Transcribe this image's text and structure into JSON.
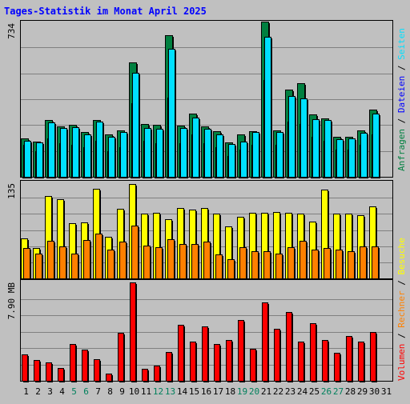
{
  "title": "Tages-Statistik im Monat April 2025",
  "colors": {
    "background": "#c0c0c0",
    "title": "#0000ff",
    "anfragen": "#008040",
    "dateien": "#0000ff",
    "seiten": "#00e0ff",
    "besuche": "#ffff00",
    "rechner": "#ff8000",
    "volumen": "#ff0000",
    "weekend_label": "#00805c"
  },
  "legend": {
    "top": [
      {
        "text": "Anfragen",
        "color": "#008040"
      },
      {
        "text": "Dateien",
        "color": "#0000ff"
      },
      {
        "text": "Seiten",
        "color": "#00e0ff"
      }
    ],
    "bottom": [
      {
        "text": "Volumen",
        "color": "#ff0000"
      },
      {
        "text": "Rechner",
        "color": "#ff8000"
      },
      {
        "text": "Besuche",
        "color": "#ffff00"
      }
    ],
    "separator": "/"
  },
  "chart_data": [
    {
      "type": "bar",
      "name": "panel-hits",
      "axis_label": "734",
      "ylim": [
        0,
        734
      ],
      "categories": [
        "1",
        "2",
        "3",
        "4",
        "5",
        "6",
        "7",
        "8",
        "9",
        "10",
        "11",
        "12",
        "13",
        "14",
        "15",
        "16",
        "17",
        "18",
        "19",
        "20",
        "21",
        "22",
        "23",
        "24",
        "25",
        "26",
        "27",
        "28",
        "29",
        "30",
        "31"
      ],
      "weekend_days": [
        "5",
        "6",
        "12",
        "13",
        "19",
        "20",
        "26",
        "27"
      ],
      "series": [
        {
          "name": "Anfragen",
          "values": [
            182,
            168,
            267,
            239,
            246,
            210,
            269,
            200,
            220,
            542,
            251,
            247,
            668,
            241,
            298,
            237,
            217,
            162,
            200,
            216,
            734,
            218,
            411,
            443,
            294,
            276,
            188,
            188,
            220,
            317,
            0
          ]
        },
        {
          "name": "Dateien",
          "values": [
            150,
            120,
            180,
            160,
            150,
            140,
            170,
            120,
            140,
            349,
            170,
            160,
            374,
            160,
            200,
            160,
            140,
            100,
            130,
            150,
            459,
            150,
            260,
            250,
            190,
            170,
            130,
            130,
            150,
            200,
            0
          ]
        },
        {
          "name": "Seiten",
          "values": [
            172,
            163,
            257,
            230,
            236,
            200,
            262,
            190,
            210,
            490,
            230,
            227,
            607,
            229,
            280,
            227,
            200,
            155,
            165,
            213,
            664,
            213,
            382,
            371,
            272,
            268,
            178,
            183,
            207,
            300,
            0
          ]
        }
      ]
    },
    {
      "type": "bar",
      "name": "panel-visits",
      "axis_label": "135",
      "ylim": [
        0,
        135
      ],
      "series": [
        {
          "name": "Besuche",
          "values": [
            56,
            42,
            115,
            110,
            77,
            78,
            125,
            58,
            97,
            132,
            90,
            92,
            83,
            98,
            96,
            98,
            90,
            72,
            86,
            91,
            91,
            93,
            92,
            90,
            79,
            124,
            90,
            90,
            88,
            100,
            0
          ]
        },
        {
          "name": "Rechner",
          "values": [
            42,
            35,
            52,
            45,
            35,
            54,
            63,
            40,
            51,
            74,
            46,
            44,
            55,
            48,
            48,
            51,
            33,
            27,
            43,
            38,
            38,
            35,
            44,
            52,
            40,
            42,
            40,
            38,
            45,
            45,
            0
          ]
        }
      ]
    },
    {
      "type": "bar",
      "name": "panel-volume",
      "axis_label": "7.90 MB",
      "ylim": [
        0,
        7.9
      ],
      "series": [
        {
          "name": "Volumen",
          "values": [
            2.13,
            1.66,
            1.45,
            1.02,
            2.97,
            2.5,
            1.76,
            0.55,
            3.86,
            7.9,
            0.97,
            1.24,
            2.34,
            4.47,
            3.12,
            4.37,
            2.95,
            3.25,
            4.85,
            2.56,
            6.32,
            4.17,
            5.55,
            3.17,
            4.64,
            3.27,
            2.28,
            3.57,
            3.15,
            3.93,
            0
          ]
        }
      ]
    }
  ]
}
